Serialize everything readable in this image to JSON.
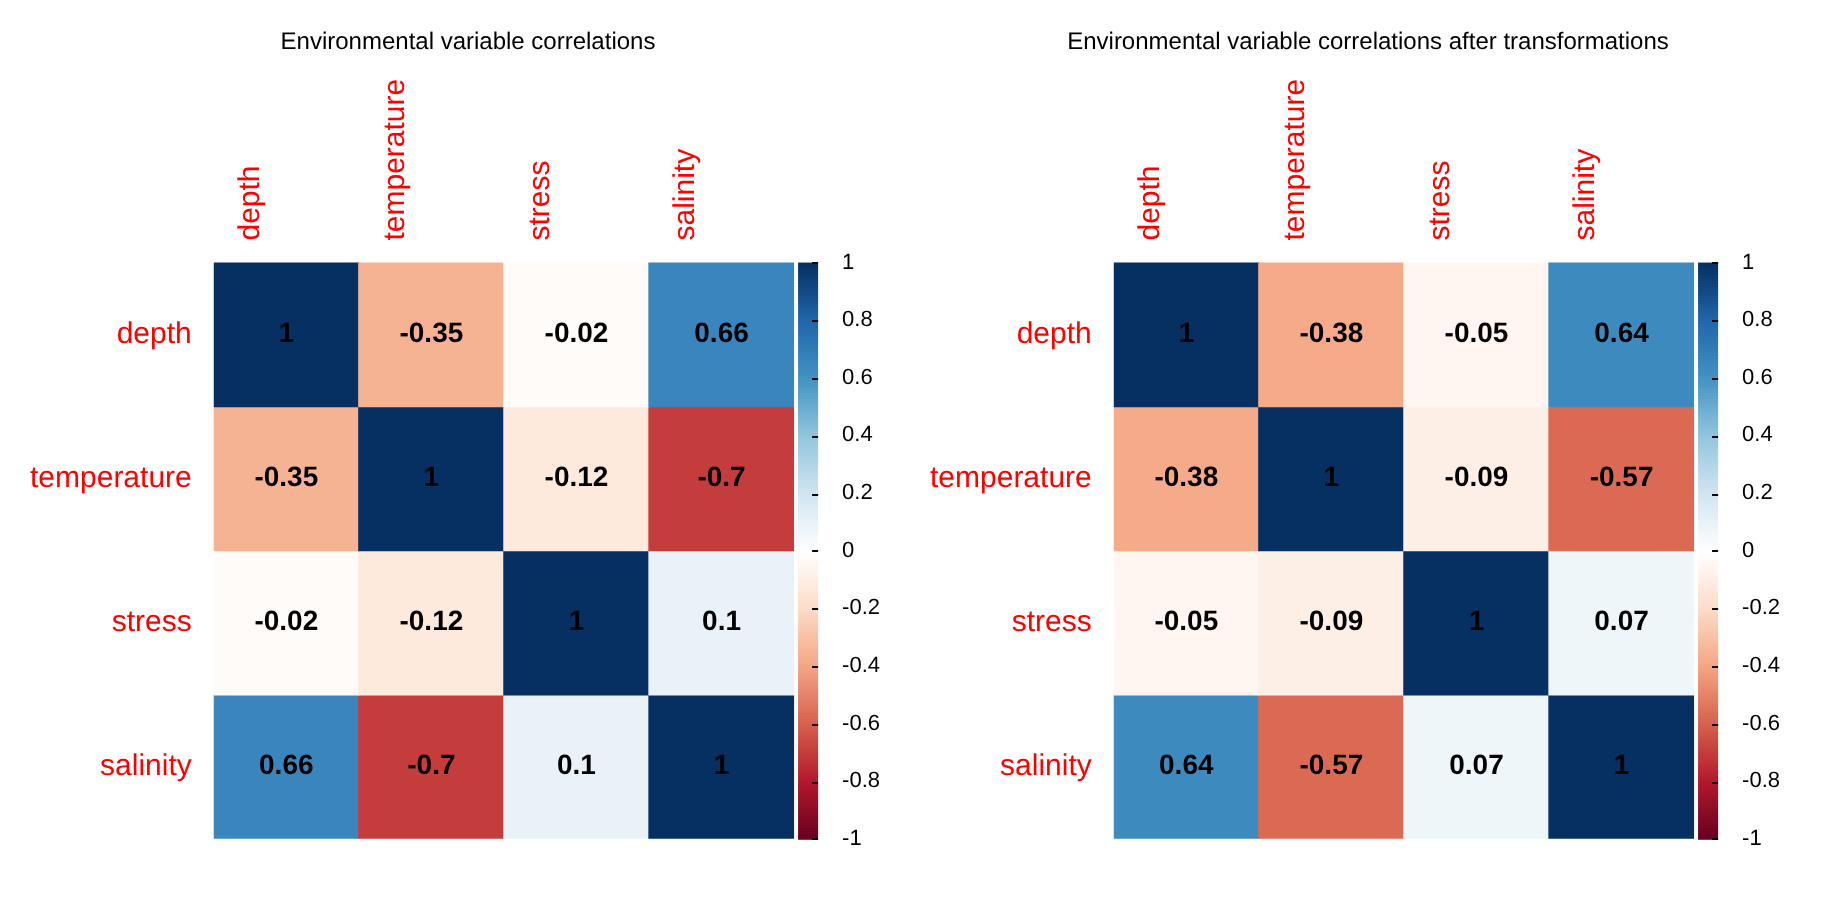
{
  "chart_data": [
    {
      "type": "heatmap",
      "title": "Environmental variable correlations",
      "categories": [
        "depth",
        "temperature",
        "stress",
        "salinity"
      ],
      "y_categories": [
        "depth",
        "temperature",
        "stress",
        "salinity"
      ],
      "cells": [
        [
          1,
          -0.35,
          -0.02,
          0.66
        ],
        [
          -0.35,
          1,
          -0.12,
          -0.7
        ],
        [
          -0.02,
          -0.12,
          1,
          0.1
        ],
        [
          0.66,
          -0.7,
          0.1,
          1
        ]
      ],
      "clim": [
        -1,
        1
      ],
      "cticks": [
        -1,
        -0.8,
        -0.6,
        -0.4,
        -0.2,
        0,
        0.2,
        0.4,
        0.6,
        0.8,
        1
      ],
      "data_labels": true
    },
    {
      "type": "heatmap",
      "title": "Environmental variable correlations after transformations",
      "categories": [
        "depth",
        "temperature",
        "stress",
        "salinity"
      ],
      "y_categories": [
        "depth",
        "temperature",
        "stress",
        "salinity"
      ],
      "cells": [
        [
          1,
          -0.38,
          -0.05,
          0.64
        ],
        [
          -0.38,
          1,
          -0.09,
          -0.57
        ],
        [
          -0.05,
          -0.09,
          1,
          0.07
        ],
        [
          0.64,
          -0.57,
          0.07,
          1
        ]
      ],
      "clim": [
        -1,
        1
      ],
      "cticks": [
        -1,
        -0.8,
        -0.6,
        -0.4,
        -0.2,
        0,
        0.2,
        0.4,
        0.6,
        0.8,
        1
      ],
      "data_labels": true
    }
  ]
}
